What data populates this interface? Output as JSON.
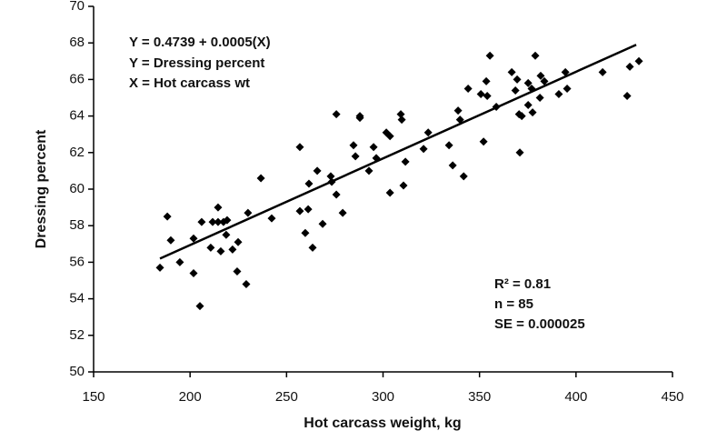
{
  "chart_data": {
    "type": "scatter",
    "x_label": "Hot carcass weight, kg",
    "y_label": "Dressing percent",
    "annotations": [
      "Y = 0.4739 + 0.0005(X)",
      "Y = Dressing percent",
      "X = Hot carcass wt",
      "R² = 0.81",
      "n = 85",
      "SE = 0.000025"
    ],
    "xlim": [
      150,
      450
    ],
    "xticks": [
      150,
      200,
      250,
      300,
      350,
      400,
      450
    ],
    "ylim": [
      50,
      70
    ],
    "yticks": [
      50,
      52,
      54,
      56,
      58,
      60,
      62,
      64,
      66,
      68,
      70
    ],
    "color": "#000000",
    "x": [
      184.4,
      188.2,
      190,
      194.7,
      201.8,
      201.8,
      205.1,
      206,
      210.7,
      211.7,
      214.5,
      214.5,
      215.9,
      217.3,
      218.7,
      219.2,
      222,
      224.4,
      224.9,
      229.1,
      230,
      236.7,
      242.3,
      256.9,
      256.9,
      259.7,
      261.2,
      261.6,
      263.5,
      265.9,
      268.7,
      272.9,
      273.4,
      275.8,
      275.8,
      279.1,
      284.7,
      285.7,
      288,
      288,
      292.7,
      295.1,
      296.5,
      301.7,
      303.6,
      303.6,
      309.2,
      309.7,
      310.6,
      311.6,
      321,
      323.4,
      334.2,
      336.1,
      338.9,
      339.9,
      341.8,
      344.1,
      350.7,
      352.1,
      353.5,
      354,
      355.4,
      358.7,
      366.7,
      368.6,
      369.5,
      370.5,
      370.9,
      371.9,
      375.2,
      375.2,
      377,
      377.5,
      378.9,
      381.3,
      381.7,
      383.6,
      391.1,
      394.5,
      395.4,
      413.8,
      426.5,
      427.9,
      432.6
    ],
    "y": [
      55.7,
      58.5,
      57.2,
      56.0,
      57.3,
      55.4,
      53.6,
      58.2,
      56.8,
      58.2,
      59.0,
      58.2,
      56.6,
      58.2,
      57.5,
      58.3,
      56.7,
      55.5,
      57.1,
      54.8,
      58.7,
      60.6,
      58.4,
      62.3,
      58.8,
      57.6,
      58.9,
      60.3,
      56.8,
      61.0,
      58.1,
      60.7,
      60.4,
      59.7,
      64.1,
      58.7,
      62.4,
      61.8,
      64.0,
      63.9,
      61.0,
      62.3,
      61.7,
      63.1,
      62.9,
      59.8,
      64.1,
      63.8,
      60.2,
      61.5,
      62.2,
      63.1,
      62.4,
      61.3,
      64.3,
      63.8,
      60.7,
      65.5,
      65.2,
      62.6,
      65.9,
      65.1,
      67.3,
      64.5,
      66.4,
      65.4,
      66.0,
      64.1,
      62.0,
      64.0,
      65.8,
      64.6,
      65.5,
      64.2,
      67.3,
      65.0,
      66.2,
      65.9,
      65.2,
      66.4,
      65.5,
      66.4,
      65.1,
      66.7,
      67.0
    ],
    "fit_line": {
      "x": [
        184.4,
        431.2
      ],
      "y": [
        56.2,
        67.9
      ]
    }
  }
}
